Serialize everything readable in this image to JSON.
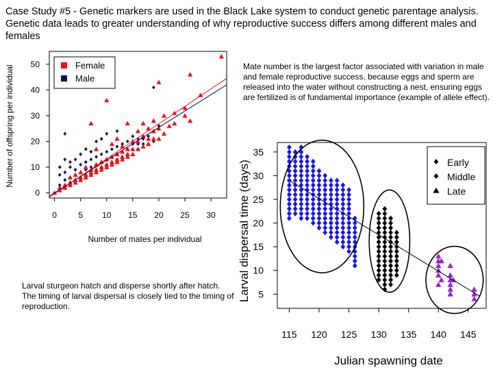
{
  "slide": {
    "title": "Case Study #5 - Genetic markers are used in the Black Lake system to conduct genetic parentage analysis.  Genetic data leads to greater understanding of why reproductive success differs among different males and females",
    "note_right": "Mate number is the largest factor associated with variation in male and female reproductive success. because eggs and sperm are released into the water without constructing a nest, ensuring eggs are fertilized is of fundamental importance (example of allele effect).",
    "note_left": "Larval sturgeon hatch and disperse shortly after hatch.  The timing of larval dispersal is closely tied to the timing of reproduction."
  },
  "colors": {
    "female": "#ee1111",
    "male": "#0c0c66",
    "early": "#1515ee",
    "middle": "#000000",
    "late": "#9922cc"
  },
  "chart_data": [
    {
      "type": "scatter",
      "title": "",
      "xlabel": "Number of mates per individual",
      "ylabel": "Number of offspring per individual",
      "xlim": [
        -1,
        33
      ],
      "ylim": [
        -2,
        55
      ],
      "xticks": [
        0,
        5,
        10,
        15,
        20,
        25,
        30
      ],
      "yticks": [
        0,
        10,
        20,
        30,
        40,
        50
      ],
      "grid": false,
      "legend": {
        "position": "top-left",
        "entries": [
          "Female",
          "Male"
        ]
      },
      "series": [
        {
          "name": "Female",
          "marker": "square (legend) / triangle (points)",
          "points": [
            [
              0,
              0
            ],
            [
              1,
              1
            ],
            [
              1,
              2
            ],
            [
              2,
              2
            ],
            [
              2,
              3
            ],
            [
              3,
              3
            ],
            [
              3,
              4
            ],
            [
              3,
              6
            ],
            [
              4,
              4
            ],
            [
              4,
              5
            ],
            [
              4,
              7
            ],
            [
              5,
              5
            ],
            [
              5,
              6
            ],
            [
              5,
              8
            ],
            [
              6,
              6
            ],
            [
              6,
              7
            ],
            [
              6,
              10
            ],
            [
              7,
              7
            ],
            [
              7,
              8
            ],
            [
              7,
              9
            ],
            [
              7,
              27
            ],
            [
              8,
              8
            ],
            [
              8,
              9
            ],
            [
              8,
              11
            ],
            [
              8,
              17
            ],
            [
              9,
              9
            ],
            [
              9,
              10
            ],
            [
              9,
              12
            ],
            [
              10,
              10
            ],
            [
              10,
              11
            ],
            [
              10,
              13
            ],
            [
              10,
              36
            ],
            [
              11,
              11
            ],
            [
              11,
              12
            ],
            [
              11,
              14
            ],
            [
              11,
              19
            ],
            [
              12,
              12
            ],
            [
              12,
              13
            ],
            [
              12,
              15
            ],
            [
              12,
              21
            ],
            [
              13,
              13
            ],
            [
              13,
              14
            ],
            [
              13,
              16
            ],
            [
              13,
              18
            ],
            [
              14,
              14
            ],
            [
              14,
              15
            ],
            [
              14,
              17
            ],
            [
              14,
              27
            ],
            [
              15,
              15
            ],
            [
              15,
              17
            ],
            [
              15,
              20
            ],
            [
              16,
              17
            ],
            [
              16,
              20
            ],
            [
              16,
              24
            ],
            [
              17,
              18
            ],
            [
              17,
              22
            ],
            [
              17,
              27
            ],
            [
              18,
              19
            ],
            [
              18,
              21
            ],
            [
              18,
              25
            ],
            [
              19,
              21
            ],
            [
              19,
              24
            ],
            [
              19,
              28
            ],
            [
              20,
              21
            ],
            [
              20,
              25
            ],
            [
              20,
              43
            ],
            [
              21,
              23
            ],
            [
              21,
              30
            ],
            [
              22,
              26
            ],
            [
              23,
              27
            ],
            [
              23,
              31
            ],
            [
              25,
              30
            ],
            [
              25,
              33
            ],
            [
              26,
              28
            ],
            [
              26,
              46
            ],
            [
              28,
              38
            ],
            [
              32,
              53
            ]
          ],
          "fit_line": {
            "x": [
              -1,
              33
            ],
            "y": [
              -1.7,
              44.5
            ]
          }
        },
        {
          "name": "Male",
          "marker": "square (legend) / diamond (points)",
          "points": [
            [
              1,
              1
            ],
            [
              1,
              2
            ],
            [
              1,
              3
            ],
            [
              1,
              7
            ],
            [
              1,
              10
            ],
            [
              2,
              2
            ],
            [
              2,
              3
            ],
            [
              2,
              5
            ],
            [
              2,
              8
            ],
            [
              2,
              13
            ],
            [
              2,
              23
            ],
            [
              3,
              3
            ],
            [
              3,
              4
            ],
            [
              3,
              6
            ],
            [
              3,
              10
            ],
            [
              3,
              12
            ],
            [
              4,
              4
            ],
            [
              4,
              5
            ],
            [
              4,
              7
            ],
            [
              4,
              9
            ],
            [
              4,
              13
            ],
            [
              5,
              5
            ],
            [
              5,
              6
            ],
            [
              5,
              8
            ],
            [
              5,
              11
            ],
            [
              5,
              15
            ],
            [
              6,
              6
            ],
            [
              6,
              7
            ],
            [
              6,
              9
            ],
            [
              6,
              12
            ],
            [
              6,
              17
            ],
            [
              7,
              7
            ],
            [
              7,
              8
            ],
            [
              7,
              10
            ],
            [
              7,
              13
            ],
            [
              7,
              16
            ],
            [
              8,
              8
            ],
            [
              8,
              9
            ],
            [
              8,
              11
            ],
            [
              8,
              14
            ],
            [
              8,
              20
            ],
            [
              9,
              9
            ],
            [
              9,
              10
            ],
            [
              9,
              12
            ],
            [
              9,
              15
            ],
            [
              9,
              21
            ],
            [
              10,
              10
            ],
            [
              10,
              11
            ],
            [
              10,
              13
            ],
            [
              10,
              16
            ],
            [
              10,
              23
            ],
            [
              11,
              11
            ],
            [
              11,
              12
            ],
            [
              11,
              14
            ],
            [
              11,
              17
            ],
            [
              12,
              12
            ],
            [
              12,
              13
            ],
            [
              12,
              15
            ],
            [
              12,
              18
            ],
            [
              12,
              24
            ],
            [
              13,
              13
            ],
            [
              13,
              14
            ],
            [
              13,
              16
            ],
            [
              13,
              19
            ],
            [
              14,
              14
            ],
            [
              14,
              15
            ],
            [
              14,
              17
            ],
            [
              14,
              20
            ],
            [
              15,
              15
            ],
            [
              15,
              17
            ],
            [
              15,
              19
            ],
            [
              15,
              22
            ],
            [
              16,
              17
            ],
            [
              16,
              19
            ],
            [
              16,
              21
            ],
            [
              17,
              19
            ],
            [
              17,
              21
            ],
            [
              18,
              19
            ],
            [
              18,
              22
            ],
            [
              19,
              20
            ],
            [
              19,
              41
            ],
            [
              20,
              26
            ]
          ],
          "fit_line": {
            "x": [
              -1,
              33
            ],
            "y": [
              -1.3,
              42.0
            ]
          }
        }
      ]
    },
    {
      "type": "scatter",
      "title": "",
      "xlabel": "Julian spawning date",
      "ylabel": "Larval dispersal time (days)",
      "xlim": [
        113,
        148
      ],
      "ylim": [
        2,
        37
      ],
      "xticks": [
        115,
        120,
        125,
        130,
        135,
        140,
        145
      ],
      "yticks": [
        5,
        10,
        15,
        20,
        25,
        30,
        35
      ],
      "grid": false,
      "legend": {
        "position": "top-right",
        "entries": [
          "Early",
          "Middle",
          "Late"
        ]
      },
      "trend_line": {
        "x": [
          115,
          147
        ],
        "y": [
          29,
          4.5
        ]
      },
      "ellipses": [
        {
          "group": "Early",
          "cx": 120.5,
          "cy": 23.5,
          "rx": 7,
          "ry": 14
        },
        {
          "group": "Middle",
          "cx": 131.8,
          "cy": 16.2,
          "rx": 3.4,
          "ry": 10.8
        },
        {
          "group": "Late",
          "cx": 142.7,
          "cy": 8.0,
          "rx": 4.8,
          "ry": 7.1
        }
      ],
      "series": [
        {
          "name": "Early",
          "marker": "diamond",
          "x_from": 115,
          "x_to": 126,
          "y_min": [
            21,
            22,
            21,
            21,
            20,
            19,
            18,
            17,
            16,
            15,
            14,
            11
          ],
          "y_max": [
            36,
            35,
            36,
            34,
            33,
            31,
            30,
            29,
            29,
            28,
            27,
            21
          ]
        },
        {
          "name": "Middle",
          "marker": "diamond",
          "x_from": 130,
          "x_to": 133,
          "y_min": [
            8,
            6,
            7,
            9
          ],
          "y_max": [
            22,
            23,
            21,
            18
          ]
        },
        {
          "name": "Late",
          "marker": "triangle",
          "points": [
            [
              140,
              13
            ],
            [
              140,
              12
            ],
            [
              140,
              11
            ],
            [
              140,
              10
            ],
            [
              140,
              9
            ],
            [
              140,
              7
            ],
            [
              140.5,
              12
            ],
            [
              140.5,
              8
            ],
            [
              142,
              11
            ],
            [
              142,
              9
            ],
            [
              142,
              8
            ],
            [
              142,
              7
            ],
            [
              142,
              6
            ],
            [
              142,
              5
            ],
            [
              142.5,
              8
            ],
            [
              146,
              6
            ],
            [
              146,
              5
            ],
            [
              146,
              4
            ]
          ]
        }
      ]
    }
  ]
}
